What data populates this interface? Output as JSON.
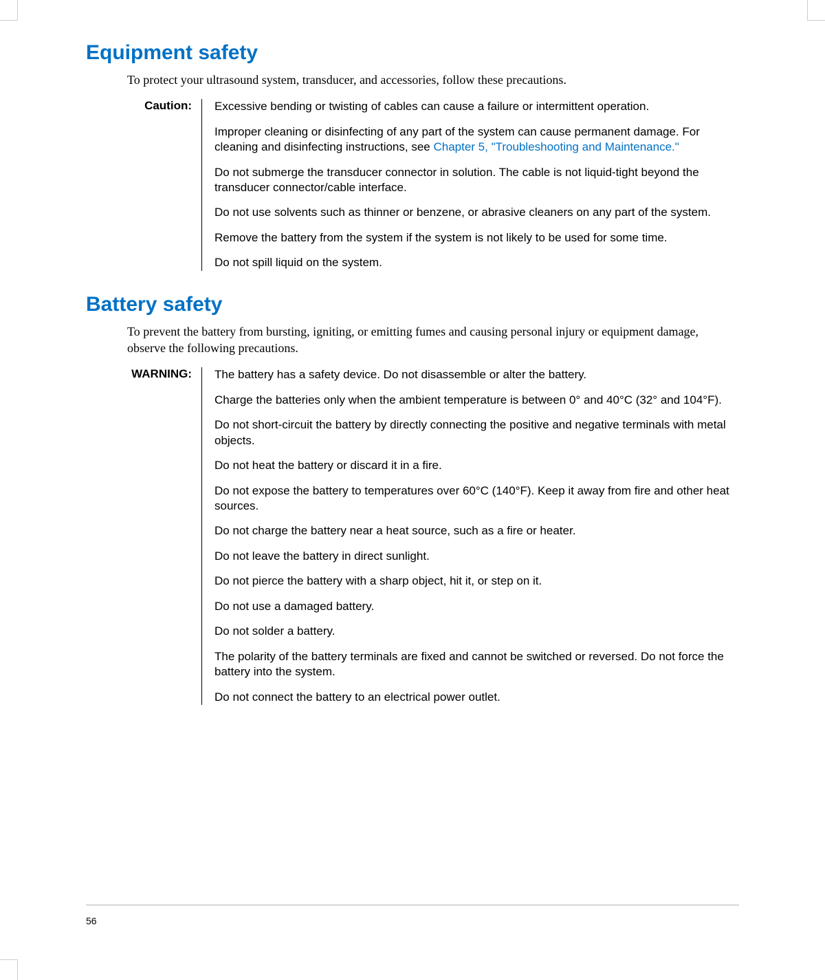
{
  "sections": [
    {
      "heading": "Equipment safety",
      "intro": "To protect your ultrasound system, transducer, and accessories, follow these precautions.",
      "label": "Caution:",
      "paras": [
        {
          "pre": "Excessive bending or twisting of cables can cause a failure or intermittent operation."
        },
        {
          "pre": "Improper cleaning or disinfecting of any part of the system can cause permanent damage. For cleaning and disinfecting instructions, see ",
          "link": "Chapter 5, \"Troubleshooting and Maintenance.\""
        },
        {
          "pre": "Do not submerge the transducer connector in solution. The cable is not liquid-tight beyond the transducer connector/cable interface."
        },
        {
          "pre": "Do not use solvents such as thinner or benzene, or abrasive cleaners on any part of the system."
        },
        {
          "pre": "Remove the battery from the system if the system is not likely to be used for some time."
        },
        {
          "pre": "Do not spill liquid on the system."
        }
      ]
    },
    {
      "heading": "Battery safety",
      "intro": "To prevent the battery from bursting, igniting, or emitting fumes and causing personal injury or equipment damage, observe the following precautions.",
      "label": "WARNING:",
      "paras": [
        {
          "pre": "The battery has a safety device. Do not disassemble or alter the battery."
        },
        {
          "pre": "Charge the batteries only when the ambient temperature is between 0° and 40°C (32° and 104°F)."
        },
        {
          "pre": "Do not short-circuit the battery by directly connecting the positive and negative terminals with metal objects."
        },
        {
          "pre": "Do not heat the battery or discard it in a fire."
        },
        {
          "pre": "Do not expose the battery to temperatures over 60°C (140°F). Keep it away from fire and other heat sources."
        },
        {
          "pre": "Do not charge the battery near a heat source, such as a fire or heater."
        },
        {
          "pre": "Do not leave the battery in direct sunlight."
        },
        {
          "pre": "Do not pierce the battery with a sharp object, hit it, or step on it."
        },
        {
          "pre": "Do not use a damaged battery."
        },
        {
          "pre": "Do not solder a battery."
        },
        {
          "pre": "The polarity of the battery terminals are fixed and cannot be switched or reversed. Do not force the battery into the system."
        },
        {
          "pre": "Do not connect the battery to an electrical power outlet."
        }
      ]
    }
  ],
  "page_number": "56"
}
